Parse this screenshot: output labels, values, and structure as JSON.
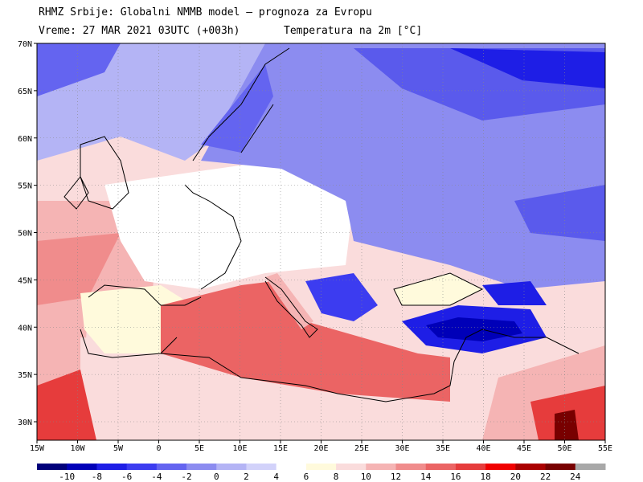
{
  "header": {
    "line1": "RHMZ Srbije: Globalni NMMB model – prognoza za Evropu",
    "line2": "Vreme: 27 MAR 2021 03UTC (+003h)",
    "line3": "Temperatura na 2m [°C]"
  },
  "axes": {
    "lat_labels": [
      "70N",
      "65N",
      "60N",
      "55N",
      "50N",
      "45N",
      "40N",
      "35N",
      "30N"
    ],
    "lon_labels": [
      "15W",
      "10W",
      "5W",
      "0",
      "5E",
      "10E",
      "15E",
      "20E",
      "25E",
      "30E",
      "35E",
      "40E",
      "45E",
      "50E",
      "55E"
    ]
  },
  "colorbar": {
    "labels": [
      "-10",
      "-8",
      "-6",
      "-4",
      "-2",
      "0",
      "2",
      "4",
      "6",
      "8",
      "10",
      "12",
      "14",
      "16",
      "18",
      "20",
      "22",
      "24"
    ],
    "colors": [
      "#00007a",
      "#0000b8",
      "#1e1ee6",
      "#3c3cf0",
      "#6464f0",
      "#8c8cf0",
      "#b4b4f5",
      "#d2d2fa",
      "#ffffff",
      "#fffadc",
      "#fadcdc",
      "#f5b4b4",
      "#f08c8c",
      "#eb6464",
      "#e63c3c",
      "#f00000",
      "#aa0000",
      "#780000",
      "#a8a8a8"
    ]
  },
  "regions": {
    "cold_east": "#5a5aec",
    "cold_core": "#1e1ee6",
    "scandinavia": "#8c8cf0",
    "west_europe": "#ffffff",
    "atlantic_north": "#b4b4f5",
    "atlantic_south": "#f5b4b4",
    "mediterranean": "#eb6464",
    "africa": "#fadcdc",
    "coast": "#000000"
  }
}
